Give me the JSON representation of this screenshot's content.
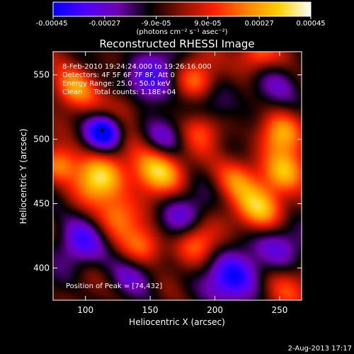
{
  "chart_data": {
    "type": "heatmap",
    "title": "Reconstructed RHESSI Image",
    "xlabel": "Heliocentric X (arcsec)",
    "ylabel": "Heliocentric Y (arcsec)",
    "xlim": [
      75,
      267
    ],
    "ylim": [
      375,
      568
    ],
    "xticks": [
      100,
      150,
      200,
      250
    ],
    "yticks": [
      400,
      450,
      500,
      550
    ],
    "colorbar": {
      "label": "(photons cm⁻² s⁻¹ asec⁻²)",
      "range": [
        -0.00045,
        0.00045
      ],
      "ticks": [
        "-0.00045",
        "-0.00027",
        "-9.0e-05",
        "9.0e-05",
        "0.00027",
        "0.00045"
      ],
      "colormap": [
        "#0000ff",
        "#5000ff",
        "#7000b0",
        "#000000",
        "#8a1200",
        "#ff2000",
        "#ff8000",
        "#ffd000",
        "#ffffff"
      ]
    },
    "annotations": [
      "8-Feb-2010 19:24:24.000 to 19:26:16.000",
      "Detectors: 4F 5F 6F 7F 8F, Att 0",
      "Energy Range: 25.0 - 50.0 keV",
      "Clean     Total counts: 1.18E+04"
    ],
    "peak_label": "Position of Peak = [74,432]",
    "marker": {
      "x": 113,
      "y": 507
    },
    "blobs": [
      {
        "x": 115,
        "y": 506,
        "v": -1.0,
        "s": 10
      },
      {
        "x": 215,
        "y": 392,
        "v": -0.85,
        "s": 14
      },
      {
        "x": 150,
        "y": 545,
        "v": -0.65,
        "s": 16
      },
      {
        "x": 95,
        "y": 420,
        "v": -0.55,
        "s": 14
      },
      {
        "x": 250,
        "y": 420,
        "v": -0.6,
        "s": 14
      },
      {
        "x": 195,
        "y": 520,
        "v": -0.5,
        "s": 14
      },
      {
        "x": 175,
        "y": 440,
        "v": -0.5,
        "s": 14
      },
      {
        "x": 140,
        "y": 400,
        "v": -0.45,
        "s": 14
      },
      {
        "x": 240,
        "y": 545,
        "v": -0.4,
        "s": 14
      },
      {
        "x": 160,
        "y": 500,
        "v": -0.45,
        "s": 12
      },
      {
        "x": 155,
        "y": 476,
        "v": 0.95,
        "s": 14
      },
      {
        "x": 110,
        "y": 470,
        "v": 0.9,
        "s": 14
      },
      {
        "x": 235,
        "y": 445,
        "v": 0.9,
        "s": 14
      },
      {
        "x": 255,
        "y": 475,
        "v": 0.8,
        "s": 12
      },
      {
        "x": 190,
        "y": 510,
        "v": 0.75,
        "s": 12
      },
      {
        "x": 250,
        "y": 505,
        "v": 0.7,
        "s": 12
      },
      {
        "x": 90,
        "y": 540,
        "v": 0.7,
        "s": 12
      },
      {
        "x": 185,
        "y": 545,
        "v": 0.65,
        "s": 12
      },
      {
        "x": 232,
        "y": 565,
        "v": 0.7,
        "s": 12
      },
      {
        "x": 145,
        "y": 415,
        "v": 0.75,
        "s": 12
      },
      {
        "x": 185,
        "y": 420,
        "v": 0.6,
        "s": 12
      },
      {
        "x": 125,
        "y": 440,
        "v": 0.6,
        "s": 12
      },
      {
        "x": 215,
        "y": 470,
        "v": 0.5,
        "s": 12
      },
      {
        "x": 255,
        "y": 385,
        "v": 0.55,
        "s": 12
      },
      {
        "x": 130,
        "y": 525,
        "v": 0.5,
        "s": 12
      },
      {
        "x": 80,
        "y": 480,
        "v": 0.6,
        "s": 10
      }
    ]
  },
  "footer": {
    "date": "2-Aug-2013 17:17"
  }
}
